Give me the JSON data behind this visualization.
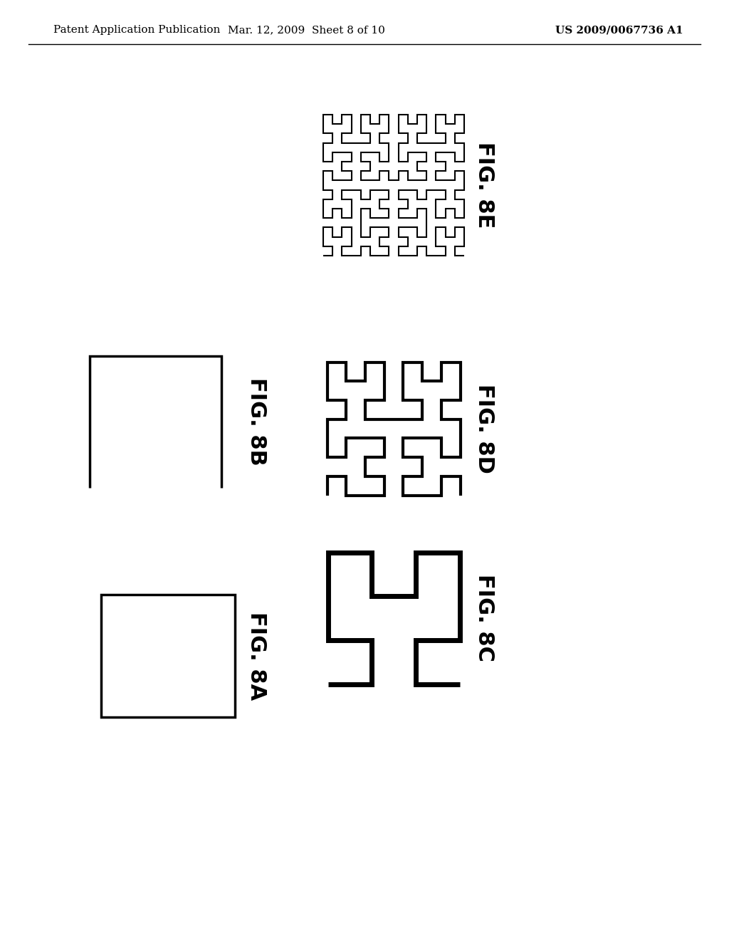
{
  "title_left": "Patent Application Publication",
  "title_mid": "Mar. 12, 2009  Sheet 8 of 10",
  "title_right": "US 2009/0067736 A1",
  "bg_color": "#ffffff",
  "line_color": "#000000",
  "label_fontsize": 22,
  "header_fontsize": 11,
  "lw_8a": 2.5,
  "lw_8b": 2.5,
  "lw_8c": 5.0,
  "lw_8d": 3.0,
  "lw_8e": 1.5
}
